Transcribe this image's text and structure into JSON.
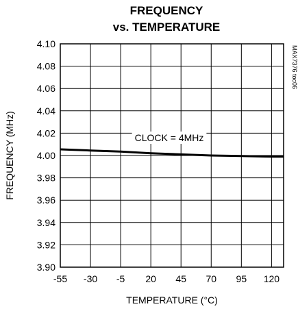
{
  "chart_data": {
    "type": "line",
    "title": [
      "FREQUENCY",
      "vs. TEMPERATURE"
    ],
    "xlabel": "TEMPERATURE (°C)",
    "ylabel": "FREQUENCY (MHz)",
    "xlim": [
      -55,
      130
    ],
    "ylim": [
      3.9,
      4.1
    ],
    "xticks": [
      "-55",
      "-30",
      "-5",
      "20",
      "45",
      "70",
      "95",
      "120"
    ],
    "xtick_values": [
      -55,
      -30,
      -5,
      20,
      45,
      70,
      95,
      120
    ],
    "yticks": [
      "3.90",
      "3.92",
      "3.94",
      "3.96",
      "3.98",
      "4.00",
      "4.02",
      "4.04",
      "4.06",
      "4.08",
      "4.10"
    ],
    "ytick_values": [
      3.9,
      3.92,
      3.94,
      3.96,
      3.98,
      4.0,
      4.02,
      4.04,
      4.06,
      4.08,
      4.1
    ],
    "grid": true,
    "annotation": "CLOCK = 4MHz",
    "figure_code": "MAX7376 toc06",
    "series": [
      {
        "x": [
          -55,
          -30,
          -5,
          20,
          45,
          70,
          95,
          120,
          130
        ],
        "y": [
          4.0055,
          4.0045,
          4.0035,
          4.002,
          4.001,
          4.0,
          3.9995,
          3.999,
          3.999
        ]
      }
    ]
  }
}
